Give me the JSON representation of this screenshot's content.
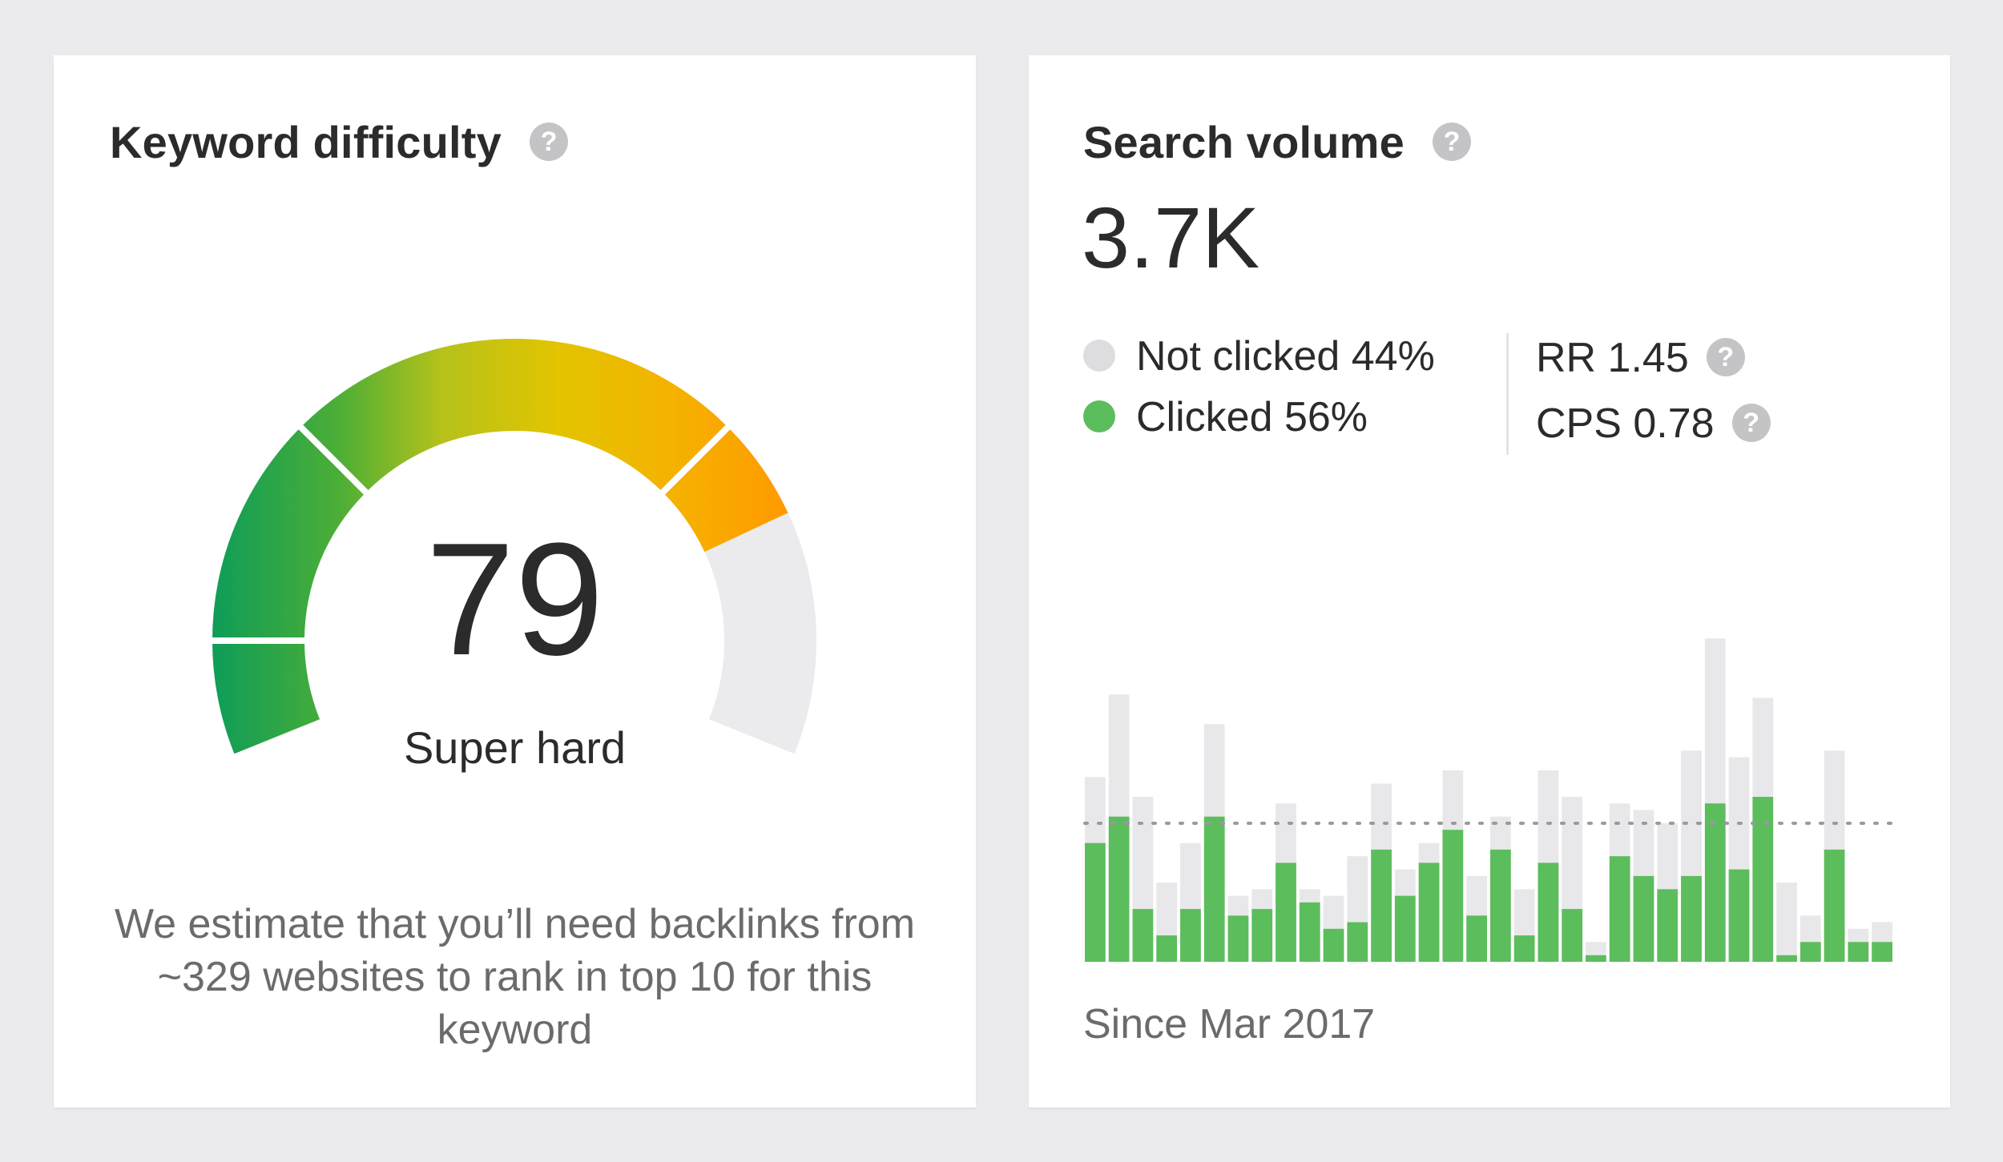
{
  "keyword_difficulty": {
    "title": "Keyword difficulty",
    "help_glyph": "?",
    "score": "79",
    "score_value": 79,
    "label": "Super hard",
    "estimate": "We estimate that you’ll need backlinks from ~329 websites to rank in top 10 for this keyword",
    "colors": {
      "green": "#0e9d58",
      "yellow": "#d5c400",
      "orange": "#ffa000",
      "track": "#ebebed"
    }
  },
  "search_volume": {
    "title": "Search volume",
    "help_glyph": "?",
    "value": "3.7K",
    "legend": {
      "not_clicked": {
        "label": "Not clicked 44%",
        "color": "#dddddf"
      },
      "clicked": {
        "label": "Clicked 56%",
        "color": "#5cbd5c"
      }
    },
    "rr": "RR 1.45",
    "cps": "CPS 0.78",
    "since": "Since Mar 2017"
  },
  "chart_data": {
    "type": "bar",
    "title": "",
    "xlabel": "",
    "ylabel": "",
    "ylim": [
      0,
      100
    ],
    "average": 42,
    "grid": false,
    "series": [
      {
        "name": "Clicked",
        "color": "#5cbd5c",
        "values": [
          36,
          44,
          16,
          8,
          16,
          44,
          14,
          16,
          30,
          18,
          10,
          12,
          34,
          20,
          30,
          40,
          14,
          34,
          8,
          30,
          16,
          2,
          32,
          26,
          22,
          26,
          48,
          28,
          50,
          2,
          6,
          34,
          6,
          6
        ]
      },
      {
        "name": "Not clicked",
        "color": "#e8e8ea",
        "values": [
          20,
          37,
          34,
          16,
          20,
          28,
          6,
          6,
          18,
          4,
          10,
          20,
          20,
          8,
          6,
          18,
          12,
          10,
          14,
          28,
          34,
          4,
          16,
          20,
          20,
          38,
          50,
          34,
          30,
          22,
          8,
          30,
          4,
          6
        ]
      }
    ]
  }
}
